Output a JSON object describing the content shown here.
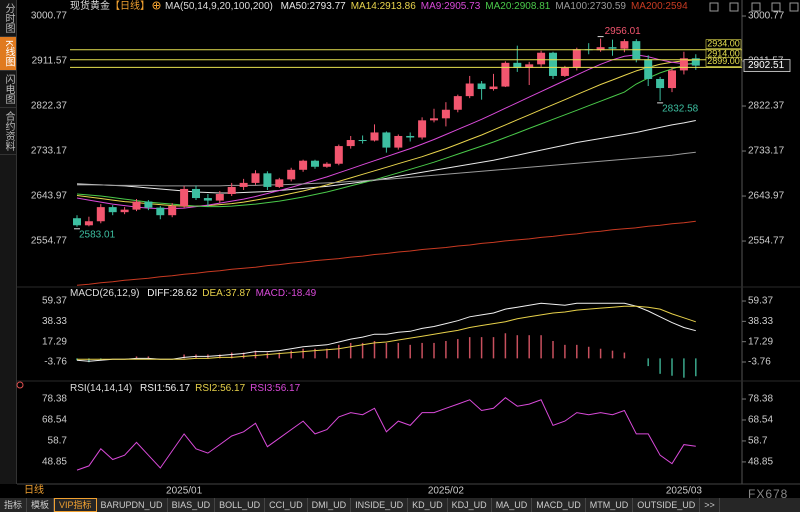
{
  "sidebar": {
    "tabs": [
      {
        "label": "分时图"
      },
      {
        "label": "K线图",
        "active": true
      },
      {
        "label": "闪电图"
      },
      {
        "label": "合约资料"
      }
    ]
  },
  "chart_data": [
    {
      "type": "candlestick",
      "title": "现货黄金",
      "period": "【日线】",
      "indicator": "MA(50,14,9,20,100,200)",
      "categories": [
        null,
        null,
        null,
        null,
        null,
        null,
        null,
        null,
        null,
        "2025/01",
        null,
        null,
        null,
        null,
        null,
        null,
        null,
        null,
        null,
        null,
        null,
        null,
        null,
        null,
        null,
        null,
        null,
        null,
        null,
        null,
        null,
        "2025/02",
        null,
        null,
        null,
        null,
        null,
        null,
        null,
        null,
        null,
        null,
        null,
        null,
        null,
        null,
        null,
        null,
        null,
        null,
        null,
        "2025/03",
        null
      ],
      "open": [
        2600,
        2586,
        2594,
        2622,
        2612,
        2617,
        2633,
        2621,
        2606,
        2624,
        2658,
        2640,
        2635,
        2648,
        2662,
        2670,
        2689,
        2662,
        2677,
        2696,
        2714,
        2702,
        2708,
        2743,
        2755,
        2754,
        2770,
        2740,
        2763,
        2760,
        2794,
        2798,
        2815,
        2842,
        2867,
        2856,
        2861,
        2908,
        2898,
        2905,
        2928,
        2882,
        2898,
        2935,
        2933,
        2939,
        2936,
        2951,
        2915,
        2876,
        2858,
        2893,
        2917
      ],
      "high": [
        2606,
        2603,
        2628,
        2626,
        2622,
        2638,
        2636,
        2624,
        2630,
        2664,
        2665,
        2648,
        2654,
        2670,
        2678,
        2695,
        2693,
        2680,
        2700,
        2716,
        2716,
        2711,
        2746,
        2763,
        2764,
        2786,
        2772,
        2766,
        2770,
        2800,
        2817,
        2830,
        2845,
        2882,
        2872,
        2886,
        2911,
        2942,
        2910,
        2932,
        2930,
        2902,
        2938,
        2947,
        2956.01,
        2954,
        2955,
        2955,
        2923,
        2880,
        2898,
        2930,
        2925
      ],
      "low": [
        2583.01,
        2584,
        2590,
        2606,
        2608,
        2614,
        2616,
        2598,
        2602,
        2620,
        2636,
        2623,
        2630,
        2644,
        2656,
        2666,
        2656,
        2660,
        2673,
        2692,
        2698,
        2700,
        2705,
        2738,
        2748,
        2752,
        2730,
        2736,
        2752,
        2756,
        2790,
        2782,
        2810,
        2838,
        2835,
        2853,
        2860,
        2890,
        2864,
        2900,
        2876,
        2880,
        2893,
        2925,
        2930,
        2922,
        2929,
        2909,
        2862,
        2832.58,
        2850,
        2885,
        2894
      ],
      "close": [
        2586,
        2594,
        2622,
        2612,
        2617,
        2633,
        2621,
        2606,
        2624,
        2658,
        2640,
        2635,
        2648,
        2662,
        2670,
        2689,
        2662,
        2677,
        2696,
        2714,
        2702,
        2708,
        2743,
        2755,
        2754,
        2770,
        2740,
        2763,
        2760,
        2794,
        2798,
        2815,
        2842,
        2867,
        2856,
        2861,
        2908,
        2898,
        2905,
        2928,
        2882,
        2898,
        2935,
        2933,
        2939,
        2936,
        2951,
        2915,
        2876,
        2858,
        2893,
        2917,
        2902.51
      ],
      "up_color": "#f2566f",
      "down_color": "#3dbfa1",
      "series": [
        {
          "name": "MA50",
          "color": "#e8e8e8",
          "values": [
            2668,
            2667,
            2666,
            2665,
            2664,
            2662,
            2660,
            2658,
            2656,
            2654,
            2652,
            2651,
            2650,
            2650,
            2651,
            2652,
            2653,
            2655,
            2657,
            2659,
            2661,
            2663,
            2666,
            2669,
            2672,
            2675,
            2679,
            2683,
            2687,
            2691,
            2695,
            2699,
            2703,
            2707,
            2711,
            2715,
            2720,
            2725,
            2730,
            2735,
            2740,
            2745,
            2750,
            2754,
            2758,
            2762,
            2766,
            2770,
            2775,
            2780,
            2785,
            2789,
            2793.77
          ]
        },
        {
          "name": "MA14",
          "color": "#e8d44d",
          "values": [
            2645,
            2642,
            2639,
            2636,
            2633,
            2631,
            2629,
            2627,
            2625,
            2624,
            2624,
            2625,
            2627,
            2629,
            2632,
            2636,
            2640,
            2644,
            2649,
            2654,
            2660,
            2666,
            2673,
            2680,
            2687,
            2694,
            2701,
            2708,
            2715,
            2722,
            2730,
            2738,
            2747,
            2756,
            2765,
            2775,
            2785,
            2795,
            2805,
            2815,
            2825,
            2835,
            2845,
            2855,
            2865,
            2874,
            2883,
            2892,
            2899,
            2905,
            2909,
            2912,
            2913.86
          ]
        },
        {
          "name": "MA9",
          "color": "#d94ad9",
          "values": [
            2640,
            2636,
            2632,
            2628,
            2625,
            2622,
            2620,
            2619,
            2619,
            2620,
            2623,
            2626,
            2630,
            2634,
            2638,
            2643,
            2649,
            2655,
            2661,
            2668,
            2675,
            2682,
            2690,
            2698,
            2706,
            2714,
            2722,
            2730,
            2738,
            2747,
            2756,
            2766,
            2776,
            2786,
            2796,
            2807,
            2818,
            2829,
            2840,
            2851,
            2862,
            2873,
            2884,
            2895,
            2905,
            2914,
            2921,
            2924,
            2920,
            2914,
            2909,
            2906,
            2905.73
          ]
        },
        {
          "name": "MA20",
          "color": "#4ac94a",
          "values": [
            2648,
            2646,
            2644,
            2641,
            2638,
            2635,
            2632,
            2630,
            2628,
            2626,
            2624,
            2623,
            2623,
            2624,
            2626,
            2628,
            2631,
            2634,
            2638,
            2642,
            2647,
            2652,
            2658,
            2664,
            2670,
            2676,
            2683,
            2690,
            2697,
            2704,
            2711,
            2719,
            2727,
            2735,
            2743,
            2751,
            2760,
            2769,
            2778,
            2787,
            2796,
            2805,
            2814,
            2823,
            2832,
            2841,
            2850,
            2866,
            2878,
            2888,
            2896,
            2903,
            2908.81
          ]
        },
        {
          "name": "MA100",
          "color": "#9a9a9a",
          "values": [
            2666,
            2666,
            2666,
            2665,
            2665,
            2665,
            2665,
            2664,
            2664,
            2664,
            2664,
            2664,
            2664,
            2665,
            2665,
            2665,
            2666,
            2666,
            2667,
            2668,
            2669,
            2670,
            2671,
            2673,
            2674,
            2676,
            2677,
            2679,
            2681,
            2683,
            2685,
            2687,
            2689,
            2691,
            2693,
            2695,
            2697,
            2699,
            2701,
            2703,
            2705,
            2707,
            2709,
            2711,
            2713,
            2715,
            2717,
            2719,
            2721,
            2723,
            2725,
            2728,
            2730.59
          ]
        },
        {
          "name": "MA200",
          "color": "#c83a22",
          "values": [
            2467,
            2469,
            2472,
            2474,
            2477,
            2479,
            2481,
            2484,
            2486,
            2489,
            2491,
            2494,
            2496,
            2499,
            2501,
            2503,
            2506,
            2508,
            2511,
            2513,
            2516,
            2518,
            2520,
            2523,
            2525,
            2528,
            2530,
            2533,
            2535,
            2538,
            2540,
            2542,
            2545,
            2547,
            2550,
            2552,
            2555,
            2557,
            2559,
            2562,
            2564,
            2567,
            2569,
            2572,
            2574,
            2577,
            2579,
            2581,
            2584,
            2586,
            2589,
            2591,
            2594
          ]
        }
      ],
      "hlines": [
        {
          "value": 2934,
          "label": "2934.00"
        },
        {
          "value": 2914,
          "label": "2914.00"
        },
        {
          "value": 2899,
          "label": "2899.00"
        }
      ],
      "hline_color": "#e6e050",
      "ylim": [
        2461.7,
        3012.7
      ],
      "yticks": [
        3000.77,
        2911.57,
        2822.37,
        2733.17,
        2643.97,
        2554.77
      ]
    },
    {
      "type": "macd",
      "title": "MACD(26,12,9)",
      "series": [
        {
          "name": "DIFF",
          "color": "#f0f0f0",
          "values": [
            -2,
            -3,
            -2,
            -1,
            -1,
            0,
            0,
            -1,
            -1,
            1,
            2,
            2,
            3,
            4,
            5,
            7,
            7,
            8,
            10,
            12,
            13,
            14,
            17,
            20,
            22,
            25,
            25,
            27,
            28,
            31,
            33,
            36,
            39,
            43,
            45,
            47,
            51,
            53,
            55,
            57,
            56,
            55,
            57,
            57,
            57,
            57,
            57,
            54,
            49,
            43,
            37,
            32,
            28.62
          ]
        },
        {
          "name": "DEA",
          "color": "#e6d04a",
          "values": [
            -1,
            -1,
            -1,
            -1,
            -1,
            -1,
            -1,
            -1,
            -1,
            -1,
            0,
            0,
            1,
            1,
            2,
            3,
            4,
            5,
            6,
            7,
            8,
            9,
            10,
            12,
            14,
            16,
            17,
            19,
            21,
            23,
            25,
            27,
            29,
            32,
            34,
            36,
            38,
            41,
            43,
            45,
            47,
            48,
            50,
            51,
            52,
            53,
            54,
            54,
            53,
            51,
            46,
            42,
            37.87
          ]
        }
      ],
      "histogram": {
        "name": "MACD",
        "color": "#d94ad9",
        "up_color": "#c8505e",
        "down_color": "#3aa88c",
        "values": [
          -2,
          -4,
          -2,
          0,
          0,
          2,
          2,
          0,
          0,
          4,
          4,
          4,
          4,
          6,
          6,
          8,
          6,
          6,
          8,
          10,
          10,
          10,
          14,
          16,
          16,
          18,
          16,
          16,
          14,
          16,
          16,
          18,
          20,
          22,
          22,
          22,
          26,
          24,
          24,
          24,
          18,
          14,
          14,
          12,
          10,
          8,
          6,
          0,
          -8,
          -16,
          -18,
          -20,
          -18.49
        ]
      },
      "ylim": [
        -22.4,
        73.9
      ],
      "yticks": [
        59.37,
        38.33,
        17.29,
        -3.76
      ]
    },
    {
      "type": "rsi",
      "title": "RSI(14,14,14)",
      "readouts": [
        {
          "name": "RSI1",
          "value": 56.17,
          "color": "#f0f0f0"
        },
        {
          "name": "RSI2",
          "value": 56.17,
          "color": "#e6d04a"
        }
      ],
      "series": [
        {
          "name": "RSI3",
          "color": "#d94ad9",
          "values": [
            45,
            47,
            55,
            50,
            52,
            58,
            52,
            46,
            54,
            62,
            55,
            53,
            57,
            61,
            63,
            67,
            56,
            60,
            64,
            68,
            62,
            64,
            70,
            72,
            71,
            74,
            63,
            68,
            66,
            72,
            72,
            74,
            76,
            78,
            73,
            74,
            79,
            75,
            76,
            78,
            66,
            68,
            72,
            71,
            72,
            71,
            73,
            62,
            62,
            52,
            48,
            57,
            56.17
          ]
        }
      ],
      "ylim": [
        41.3,
        85.9
      ],
      "yticks": [
        78.38,
        68.54,
        58.7,
        48.85
      ]
    }
  ],
  "bottom": {
    "period": "日线",
    "tabs": [
      {
        "label": "指标"
      },
      {
        "label": "模板"
      },
      {
        "label": "VIP指标",
        "active": true
      },
      {
        "label": "BARUPDN_UD"
      },
      {
        "label": "BIAS_UD"
      },
      {
        "label": "BOLL_UD"
      },
      {
        "label": "CCI_UD"
      },
      {
        "label": "DMI_UD"
      },
      {
        "label": "INSIDE_UD"
      },
      {
        "label": "KD_UD"
      },
      {
        "label": "KDJ_UD"
      },
      {
        "label": "MA_UD"
      },
      {
        "label": "MACD_UD"
      },
      {
        "label": "MTM_UD"
      },
      {
        "label": "OUTSIDE_UD"
      },
      {
        "label": ">>"
      }
    ],
    "watermark": "FX678"
  }
}
